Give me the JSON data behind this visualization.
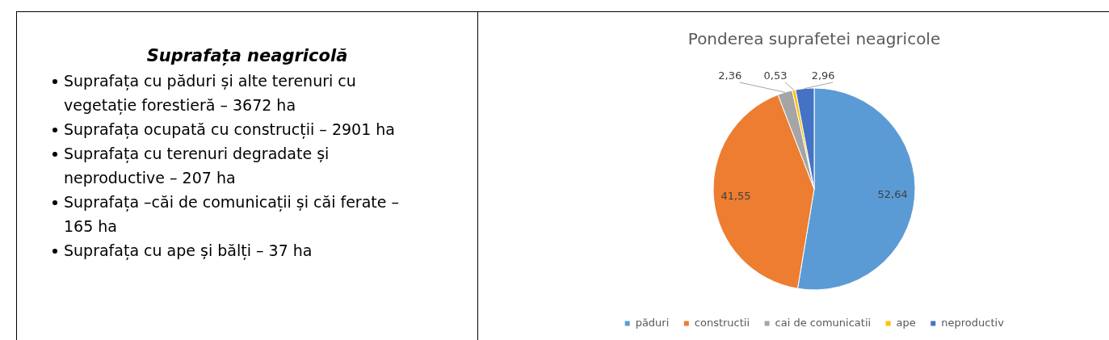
{
  "chart_data": [
    {
      "type": "other",
      "title": "Suprafața neagricolă",
      "annotations": [
        "Suprafața cu păduri și alte terenuri cu vegetație forestieră – 3672 ha",
        "Suprafața ocupată cu construcții – 2901 ha",
        "Suprafața cu terenuri degradate și neproductive – 207 ha",
        "Suprafața –căi de comunicații și căi ferate – 165 ha",
        "Suprafața cu ape și bălți – 37 ha"
      ]
    },
    {
      "type": "pie",
      "title": "Ponderea suprafetei neagricole",
      "categories": [
        "păduri",
        "constructii",
        "cai de comunicatii",
        "ape",
        "neproductiv"
      ],
      "values": [
        52.64,
        41.55,
        2.36,
        0.53,
        2.96
      ],
      "colors": [
        "#5b9bd5",
        "#ed7d31",
        "#a5a5a5",
        "#ffc000",
        "#4472c4"
      ],
      "value_labels": [
        "52,64",
        "41,55",
        "2,36",
        "0,53",
        "2,96"
      ],
      "legend": "bottom"
    }
  ]
}
